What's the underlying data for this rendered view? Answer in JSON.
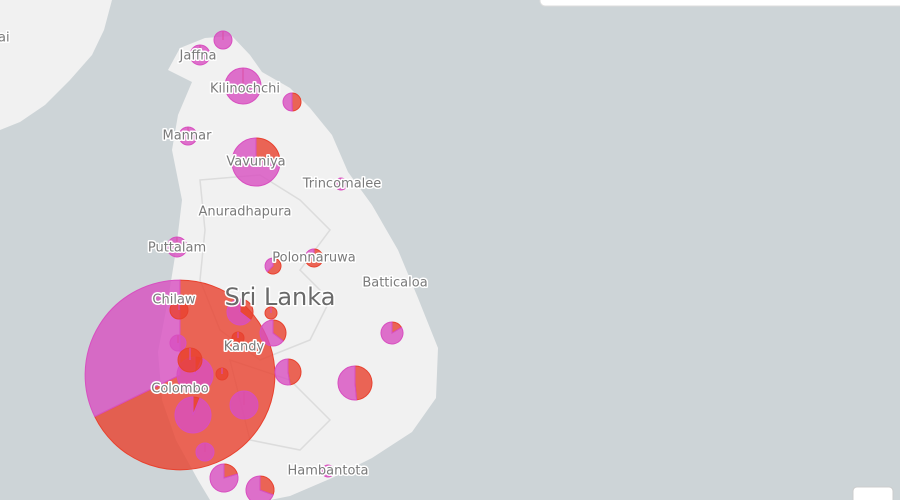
{
  "places": [
    "ai",
    "Jaffna",
    "Kilinochchi",
    "Mannar",
    "Vavuniya",
    "Trincomalee",
    "Anuradhapura",
    "Puttalam",
    "Polonnaruwa",
    "Batticaloa",
    "Chilaw",
    "Kandy",
    "Colombo",
    "Hambantota"
  ],
  "country": "Sri Lanka",
  "markers": [
    [
      6100,
      2900
    ],
    [
      0,
      81
    ],
    [
      0,
      100
    ],
    [
      0,
      324
    ],
    [
      40,
      41
    ],
    [
      0,
      81
    ],
    [
      144,
      432
    ],
    [
      0,
      36
    ],
    [
      0,
      100
    ],
    [
      60,
      21
    ],
    [
      40,
      24
    ],
    [
      20,
      101
    ],
    [
      140,
      149
    ],
    [
      80,
      89
    ],
    [
      60,
      109
    ],
    [
      0,
      196
    ],
    [
      60,
      109
    ],
    [
      36,
      0
    ],
    [
      36,
      0
    ],
    [
      81,
      0
    ],
    [
      0,
      64
    ],
    [
      20,
      304
    ],
    [
      20,
      304
    ],
    [
      144,
      0
    ],
    [
      36,
      0
    ],
    [
      0,
      81
    ],
    [
      40,
      156
    ],
    [
      60,
      136
    ],
    [
      0,
      36
    ]
  ]
}
